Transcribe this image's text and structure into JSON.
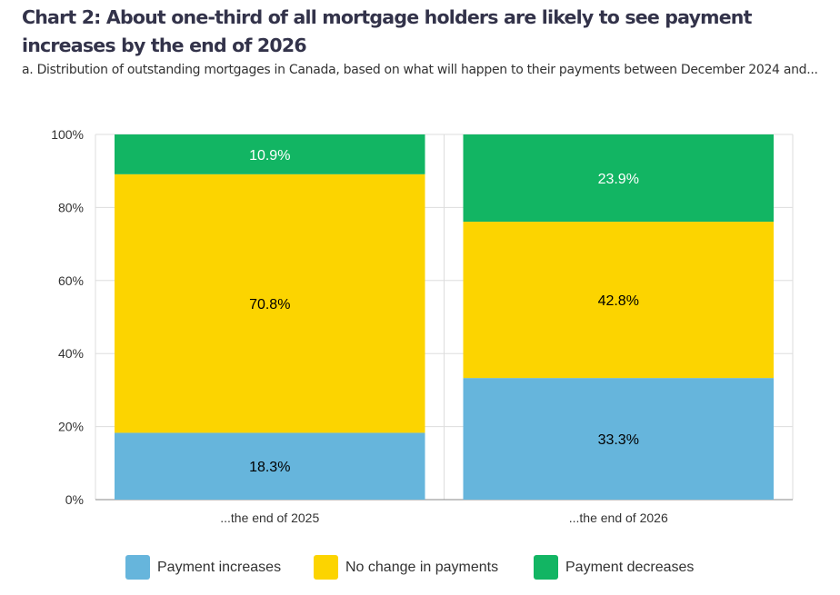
{
  "title": "Chart 2: About one-third of all mortgage holders are likely to see payment increases by the end of 2026",
  "subtitle": "a. Distribution of outstanding mortgages in Canada, based on what will happen to their payments between December 2024 and...",
  "chart_data": {
    "type": "bar",
    "stacked": true,
    "categories": [
      "...the end of 2025",
      "...the end of 2026"
    ],
    "series": [
      {
        "name": "Payment increases",
        "values": [
          18.3,
          33.3
        ],
        "labels": [
          "18.3%",
          "33.3%"
        ],
        "color": "#66b5dc",
        "label_color": "#000000"
      },
      {
        "name": "No change in payments",
        "values": [
          70.8,
          42.8
        ],
        "labels": [
          "70.8%",
          "42.8%"
        ],
        "color": "#fcd400",
        "label_color": "#000000"
      },
      {
        "name": "Payment decreases",
        "values": [
          10.9,
          23.9
        ],
        "labels": [
          "10.9%",
          "23.9%"
        ],
        "color": "#12b563",
        "label_color": "#ffffff"
      }
    ],
    "ylim": [
      0,
      100
    ],
    "yticks": [
      "0%",
      "20%",
      "40%",
      "60%",
      "80%",
      "100%"
    ],
    "grid": true,
    "legend": "bottom"
  }
}
